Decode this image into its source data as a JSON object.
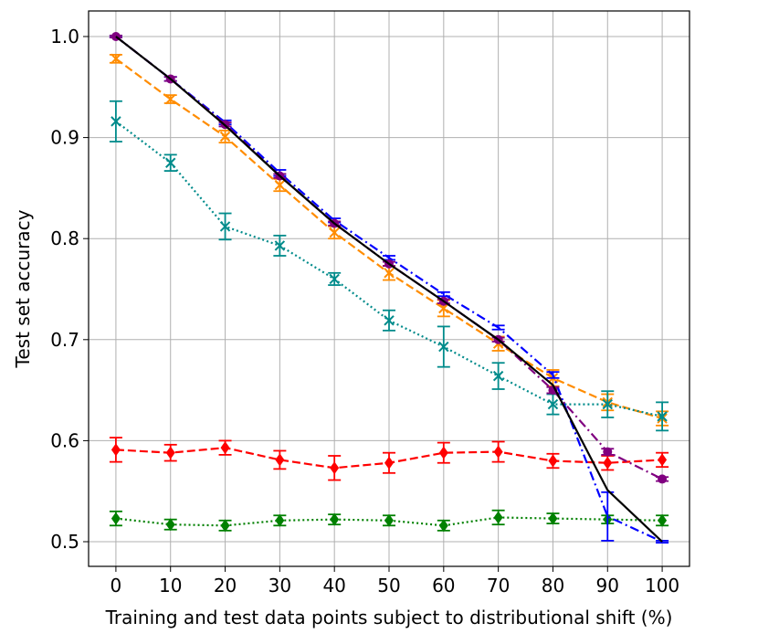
{
  "chart_data": {
    "type": "line",
    "xlabel": "Training and test data points subject to distributional shift (%)",
    "ylabel": "Test set accuracy",
    "x": [
      0,
      10,
      20,
      30,
      40,
      50,
      60,
      70,
      80,
      90,
      100
    ],
    "xlim": [
      -5,
      105
    ],
    "xticks": [
      0,
      10,
      20,
      30,
      40,
      50,
      60,
      70,
      80,
      90,
      100
    ],
    "ylim": [
      0.4756,
      1.0253
    ],
    "yticks": [
      0.5,
      0.6,
      0.7,
      0.8,
      0.9,
      {
        "value": 1,
        "label": "1.0"
      }
    ],
    "grid": true,
    "series": [
      {
        "color": "#ff8c00",
        "linestyle": "dashed",
        "marker": "x",
        "values": [
          0.978,
          0.938,
          0.901,
          0.853,
          0.806,
          0.766,
          0.731,
          0.696,
          0.662,
          0.638,
          0.622
        ],
        "errors": [
          0.004,
          0.004,
          0.006,
          0.006,
          0.006,
          0.007,
          0.008,
          0.007,
          0.008,
          0.008,
          0.007
        ]
      },
      {
        "color": "#008b8b",
        "linestyle": "dotted",
        "marker": "x",
        "values": [
          0.916,
          0.875,
          0.812,
          0.793,
          0.76,
          0.719,
          0.693,
          0.664,
          0.636,
          0.636,
          0.624
        ],
        "errors": [
          0.02,
          0.008,
          0.013,
          0.01,
          0.006,
          0.01,
          0.02,
          0.013,
          0.01,
          0.013,
          0.014
        ]
      },
      {
        "color": "#ff0000",
        "linestyle": "dashed",
        "marker": "diamond",
        "values": [
          0.591,
          0.588,
          0.593,
          0.581,
          0.573,
          0.578,
          0.588,
          0.589,
          0.58,
          0.578,
          0.581
        ],
        "errors": [
          0.012,
          0.008,
          0.007,
          0.009,
          0.012,
          0.01,
          0.01,
          0.01,
          0.007,
          0.007,
          0.007
        ]
      },
      {
        "color": "#008000",
        "linestyle": "dotted",
        "marker": "diamond",
        "values": [
          0.523,
          0.517,
          0.516,
          0.521,
          0.522,
          0.521,
          0.516,
          0.524,
          0.523,
          0.522,
          0.521
        ],
        "errors": [
          0.007,
          0.005,
          0.005,
          0.005,
          0.005,
          0.005,
          0.005,
          0.007,
          0.005,
          0.004,
          0.005
        ]
      },
      {
        "color": "#0000ff",
        "linestyle": "dashdot",
        "marker": "none",
        "values": [
          1.0,
          0.958,
          0.915,
          0.865,
          0.818,
          0.781,
          0.745,
          0.712,
          0.665,
          0.525,
          0.5
        ],
        "errors": [
          0.001,
          0.002,
          0.002,
          0.003,
          0.002,
          0.002,
          0.002,
          0.002,
          0.003,
          0.024,
          0.001
        ]
      },
      {
        "color": "#800080",
        "linestyle": "dashdot",
        "marker": "circle",
        "values": [
          1.0,
          0.958,
          0.913,
          0.862,
          0.815,
          0.775,
          0.738,
          0.7,
          0.65,
          0.589,
          0.562
        ],
        "errors": [
          0.001,
          0.002,
          0.002,
          0.002,
          0.002,
          0.002,
          0.002,
          0.002,
          0.003,
          0.003,
          0.002
        ]
      },
      {
        "color": "#000000",
        "linestyle": "solid",
        "marker": "none",
        "values": [
          1.0,
          0.958,
          0.912,
          0.862,
          0.815,
          0.775,
          0.738,
          0.7,
          0.655,
          0.551,
          0.5
        ]
      }
    ]
  }
}
